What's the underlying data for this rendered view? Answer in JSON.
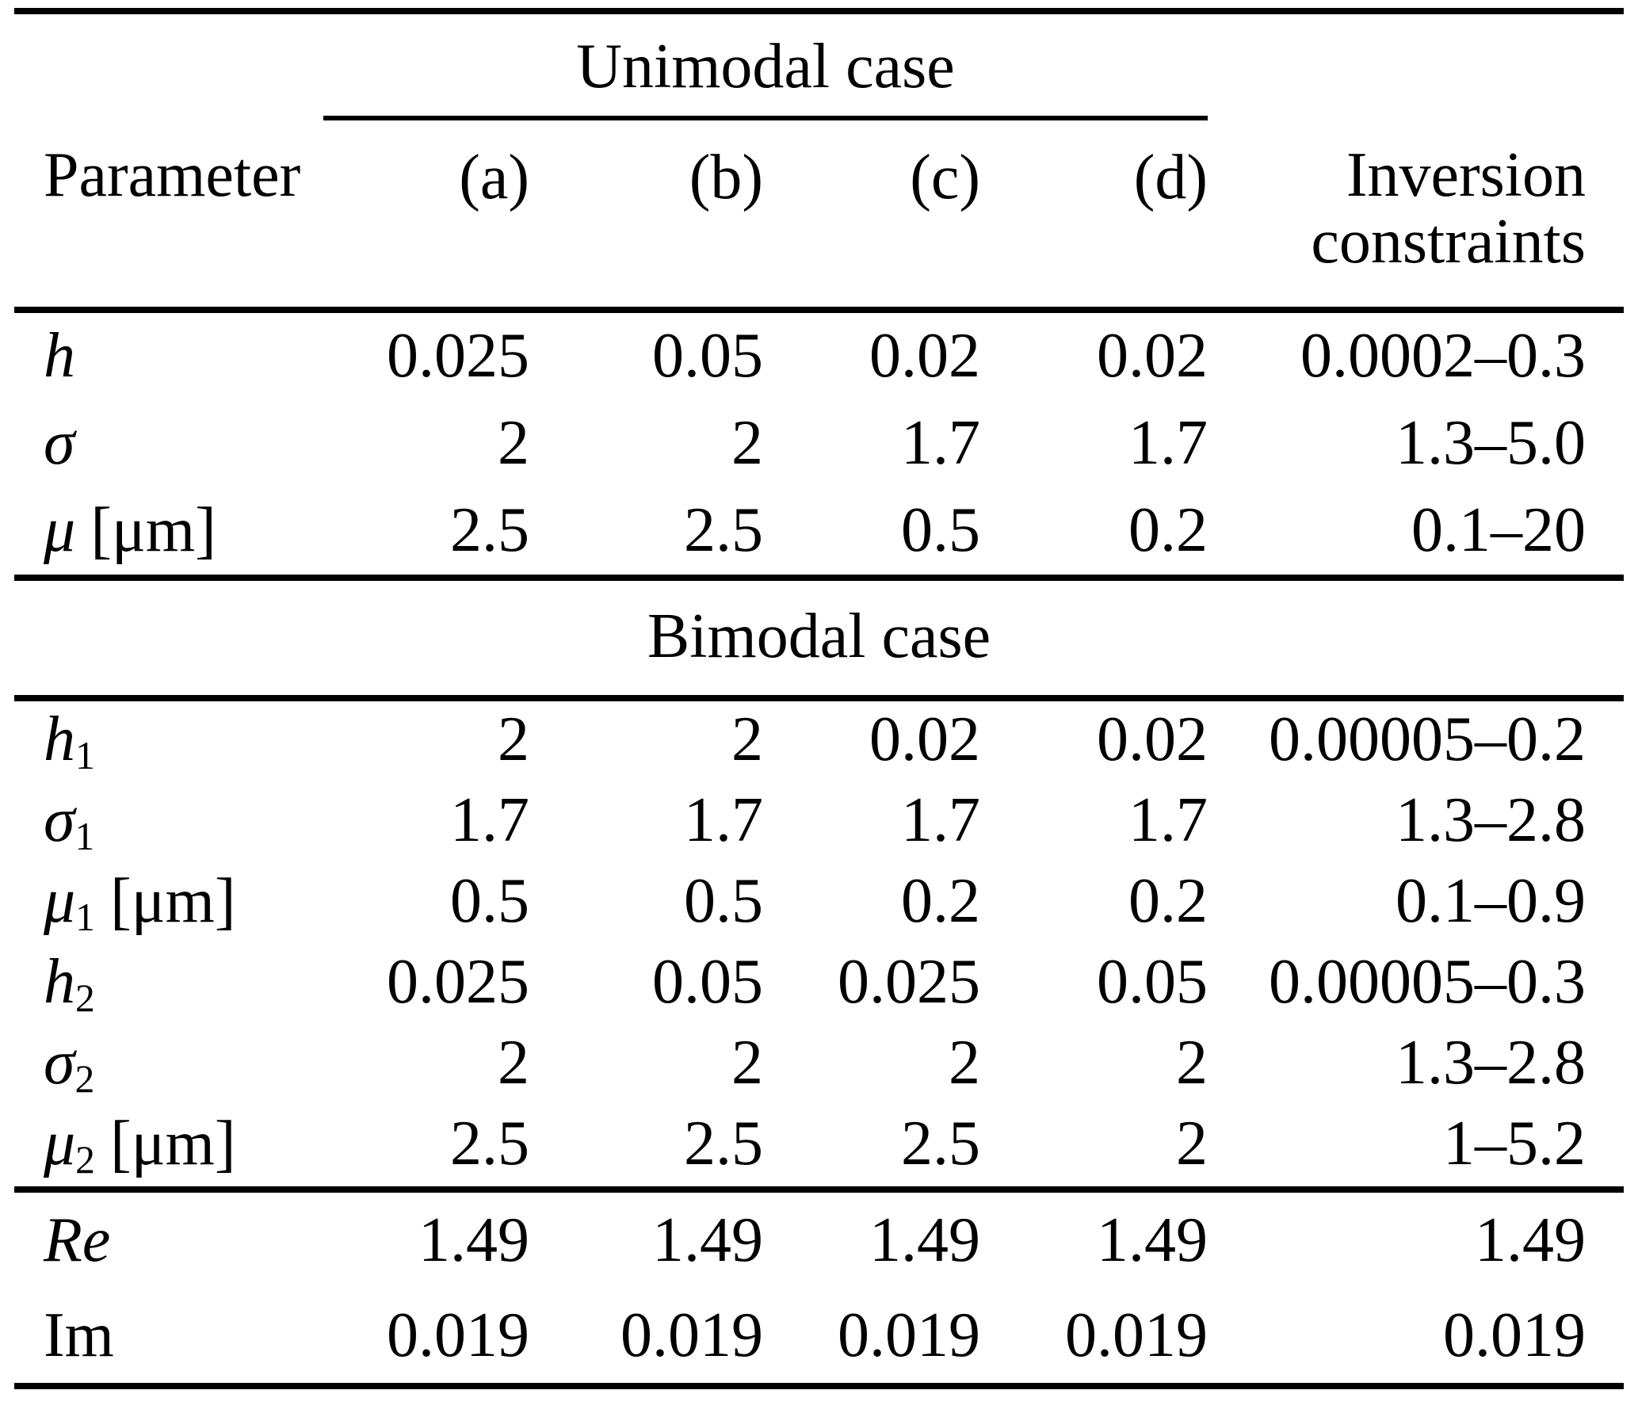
{
  "page": {
    "background_color": "#ffffff",
    "text_color": "#000000"
  },
  "table": {
    "unimodal_section_label": "Unimodal case",
    "bimodal_section_label": "Bimodal case",
    "header": {
      "parameter": "Parameter",
      "cols": [
        "(a)",
        "(b)",
        "(c)",
        "(d)"
      ],
      "inversion_line1": "Inversion",
      "inversion_line2": "constraints"
    },
    "unimodal": {
      "rows": [
        {
          "sym": "h",
          "sub": "",
          "unit": "",
          "values": [
            "0.025",
            "0.05",
            "0.02",
            "0.02"
          ],
          "constraint": "0.0002–0.3"
        },
        {
          "sym": "σ",
          "sub": "",
          "unit": "",
          "values": [
            "2",
            "2",
            "1.7",
            "1.7"
          ],
          "constraint": "1.3–5.0"
        },
        {
          "sym": "μ",
          "sub": "",
          "unit": "[μm]",
          "values": [
            "2.5",
            "2.5",
            "0.5",
            "0.2"
          ],
          "constraint": "0.1–20"
        }
      ]
    },
    "bimodal": {
      "rows": [
        {
          "sym": "h",
          "sub": "1",
          "unit": "",
          "values": [
            "2",
            "2",
            "0.02",
            "0.02"
          ],
          "constraint": "0.00005–0.2"
        },
        {
          "sym": "σ",
          "sub": "1",
          "unit": "",
          "values": [
            "1.7",
            "1.7",
            "1.7",
            "1.7"
          ],
          "constraint": "1.3–2.8"
        },
        {
          "sym": "μ",
          "sub": "1",
          "unit": "[μm]",
          "values": [
            "0.5",
            "0.5",
            "0.2",
            "0.2"
          ],
          "constraint": "0.1–0.9"
        },
        {
          "sym": "h",
          "sub": "2",
          "unit": "",
          "values": [
            "0.025",
            "0.05",
            "0.025",
            "0.05"
          ],
          "constraint": "0.00005–0.3"
        },
        {
          "sym": "σ",
          "sub": "2",
          "unit": "",
          "values": [
            "2",
            "2",
            "2",
            "2"
          ],
          "constraint": "1.3–2.8"
        },
        {
          "sym": "μ",
          "sub": "2",
          "unit": "[μm]",
          "values": [
            "2.5",
            "2.5",
            "2.5",
            "2"
          ],
          "constraint": "1–5.2"
        }
      ]
    },
    "refractive_index": {
      "rows": [
        {
          "sym": "Re",
          "values": [
            "1.49",
            "1.49",
            "1.49",
            "1.49"
          ],
          "constraint": "1.49"
        },
        {
          "sym": "Im",
          "values": [
            "0.019",
            "0.019",
            "0.019",
            "0.019"
          ],
          "constraint": "0.019"
        }
      ]
    }
  }
}
